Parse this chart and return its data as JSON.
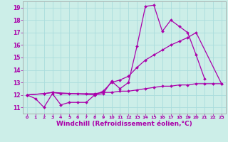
{
  "bg_color": "#cceee8",
  "grid_color": "#aadddd",
  "line_color": "#aa00aa",
  "marker": "D",
  "markersize": 2.0,
  "linewidth": 0.9,
  "xlabel": "Windchill (Refroidissement éolien,°C)",
  "xlabel_fontsize": 6.5,
  "xlim": [
    -0.5,
    23.5
  ],
  "ylim": [
    10.5,
    19.5
  ],
  "yticks": [
    11,
    12,
    13,
    14,
    15,
    16,
    17,
    18,
    19
  ],
  "xticks": [
    0,
    1,
    2,
    3,
    4,
    5,
    6,
    7,
    8,
    9,
    10,
    11,
    12,
    13,
    14,
    15,
    16,
    17,
    18,
    19,
    20,
    21,
    22,
    23
  ],
  "line1_x": [
    0,
    1,
    2,
    3,
    4,
    5,
    6,
    7,
    8,
    9,
    10,
    11,
    12,
    13,
    14,
    15,
    16,
    17,
    18,
    19,
    20,
    21
  ],
  "line1_y": [
    12.0,
    11.7,
    11.0,
    12.1,
    11.2,
    11.4,
    11.4,
    11.4,
    12.0,
    12.1,
    13.1,
    12.5,
    13.0,
    15.9,
    19.1,
    19.2,
    17.1,
    18.0,
    17.5,
    17.0,
    15.2,
    13.3
  ],
  "line2_x": [
    0,
    2,
    3,
    8,
    9,
    10,
    11,
    12,
    13,
    14,
    15,
    16,
    17,
    18,
    19,
    20,
    23
  ],
  "line2_y": [
    12.0,
    12.1,
    12.2,
    12.0,
    12.3,
    13.0,
    13.2,
    13.5,
    14.2,
    14.8,
    15.2,
    15.6,
    16.0,
    16.3,
    16.6,
    17.0,
    12.9
  ],
  "line3_x": [
    0,
    2,
    3,
    4,
    5,
    6,
    7,
    8,
    9,
    10,
    11,
    12,
    13,
    14,
    15,
    16,
    17,
    18,
    19,
    20,
    21,
    22,
    23
  ],
  "line3_y": [
    12.0,
    12.1,
    12.2,
    12.1,
    12.1,
    12.1,
    12.1,
    12.1,
    12.2,
    12.2,
    12.3,
    12.3,
    12.4,
    12.5,
    12.6,
    12.7,
    12.7,
    12.8,
    12.8,
    12.9,
    12.9,
    12.9,
    12.9
  ]
}
